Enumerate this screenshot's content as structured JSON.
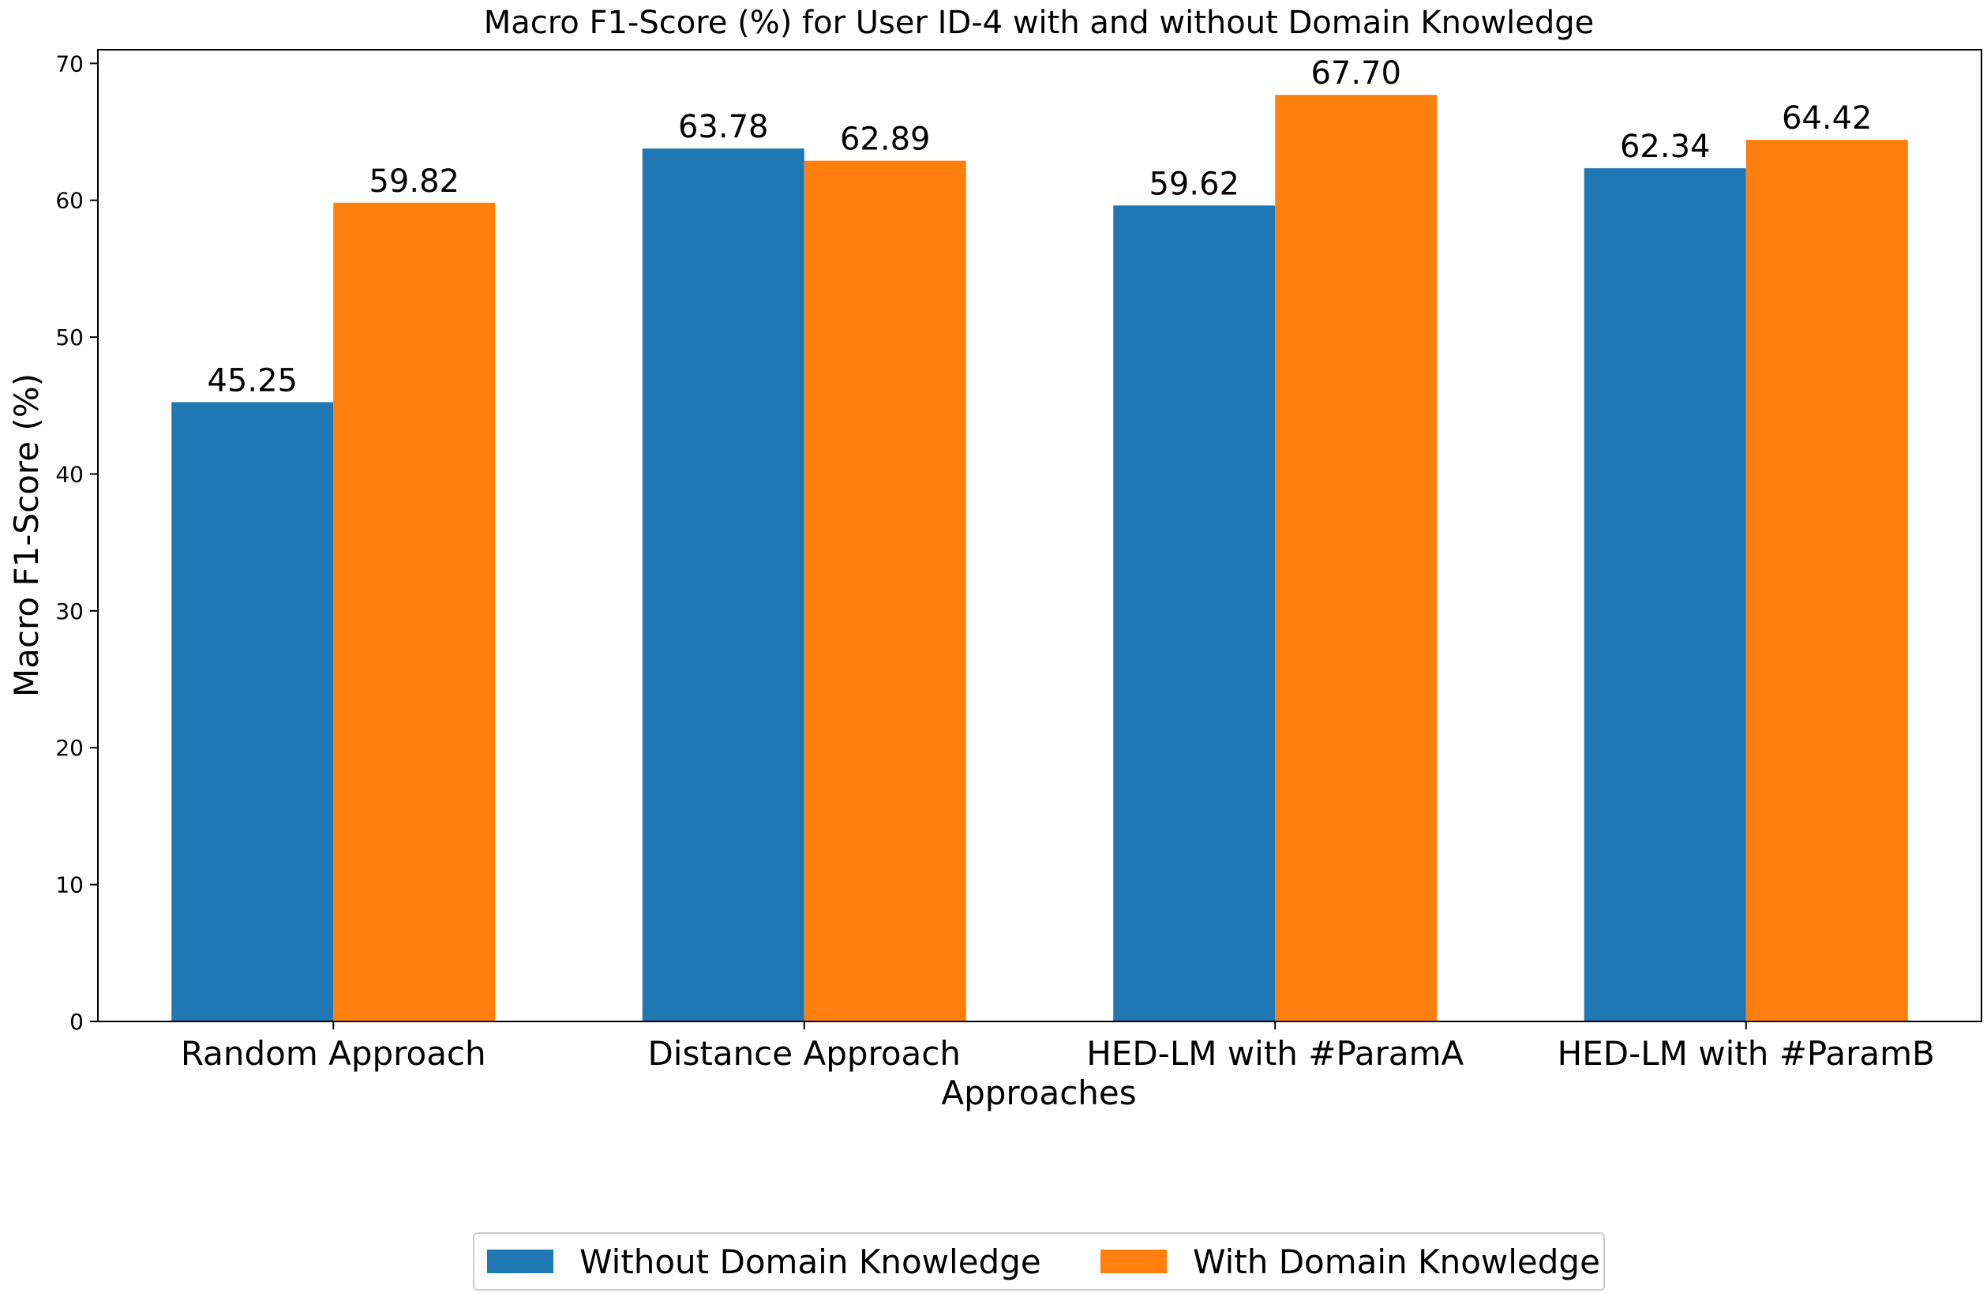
{
  "chart_data": {
    "type": "bar",
    "title": "Macro F1-Score (%) for User ID-4 with and without Domain Knowledge",
    "xlabel": "Approaches",
    "ylabel": "Macro F1-Score (%)",
    "categories": [
      "Random Approach",
      "Distance Approach",
      "HED-LM with #ParamA",
      "HED-LM with #ParamB"
    ],
    "series": [
      {
        "name": "Without Domain Knowledge",
        "color": "#1f77b4",
        "values": [
          45.25,
          63.78,
          59.62,
          62.34
        ],
        "labels": [
          "45.25",
          "63.78",
          "59.62",
          "62.34"
        ]
      },
      {
        "name": "With Domain Knowledge",
        "color": "#ff7f0e",
        "values": [
          59.82,
          62.89,
          67.7,
          64.42
        ],
        "labels": [
          "59.82",
          "62.89",
          "67.70",
          "64.42"
        ]
      }
    ],
    "ylim": [
      0,
      71
    ],
    "yticks": [
      0,
      10,
      20,
      30,
      40,
      50,
      60,
      70
    ],
    "grid": false,
    "legend_position": "bottom-center"
  }
}
